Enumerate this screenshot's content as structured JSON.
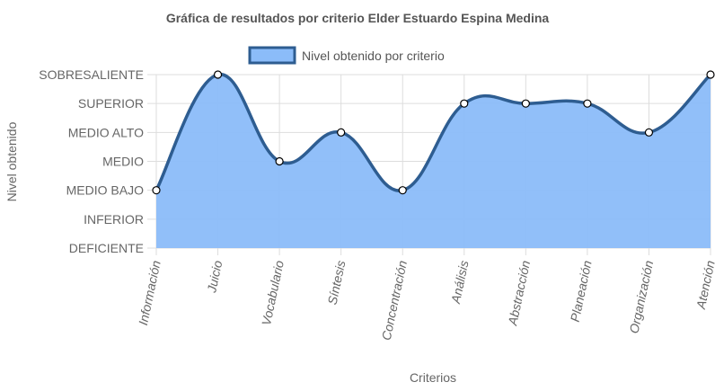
{
  "chart_data": {
    "type": "area",
    "title": "Gráfica de resultados por criterio Elder Estuardo Espina Medina",
    "xlabel": "Criterios",
    "ylabel": "Nivel obtenido",
    "y_levels": [
      "DEFICIENTE",
      "INFERIOR",
      "MEDIO BAJO",
      "MEDIO",
      "MEDIO ALTO",
      "SUPERIOR",
      "SOBRESALIENTE"
    ],
    "categories": [
      "Información",
      "Juicio",
      "Vocabulario",
      "Síntesis",
      "Concentración",
      "Análisis",
      "Abstracción",
      "Planeación",
      "Organización",
      "Atención"
    ],
    "series": [
      {
        "name": "Nivel obtenido por criterio",
        "values": [
          "MEDIO BAJO",
          "SOBRESALIENTE",
          "MEDIO",
          "MEDIO ALTO",
          "MEDIO BAJO",
          "SUPERIOR",
          "SUPERIOR",
          "SUPERIOR",
          "MEDIO ALTO",
          "SOBRESALIENTE"
        ]
      }
    ],
    "legend_position": "top",
    "grid": true,
    "colors": {
      "fill": "#8bbcf9",
      "line": "#2e5d91",
      "grid": "#dddddd",
      "point_fill": "#ffffff"
    }
  }
}
